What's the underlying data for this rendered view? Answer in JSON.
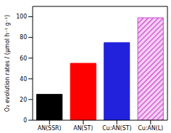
{
  "chart_data": {
    "type": "bar",
    "y_label": "O₂ evolution rates / (μmol h⁻¹ g⁻¹)",
    "categories": [
      "AN(SSR)",
      "AN(ST)",
      "Cu:AN(ST)",
      "Cu:AN(L)"
    ],
    "values": [
      25,
      55,
      75,
      99
    ],
    "colors": [
      "#000000",
      "#ff0000",
      "#2222dd",
      "#cc44cc"
    ],
    "ylim": [
      0,
      110
    ],
    "yticks": [
      0,
      20,
      40,
      60,
      80,
      100
    ],
    "grid": false
  }
}
